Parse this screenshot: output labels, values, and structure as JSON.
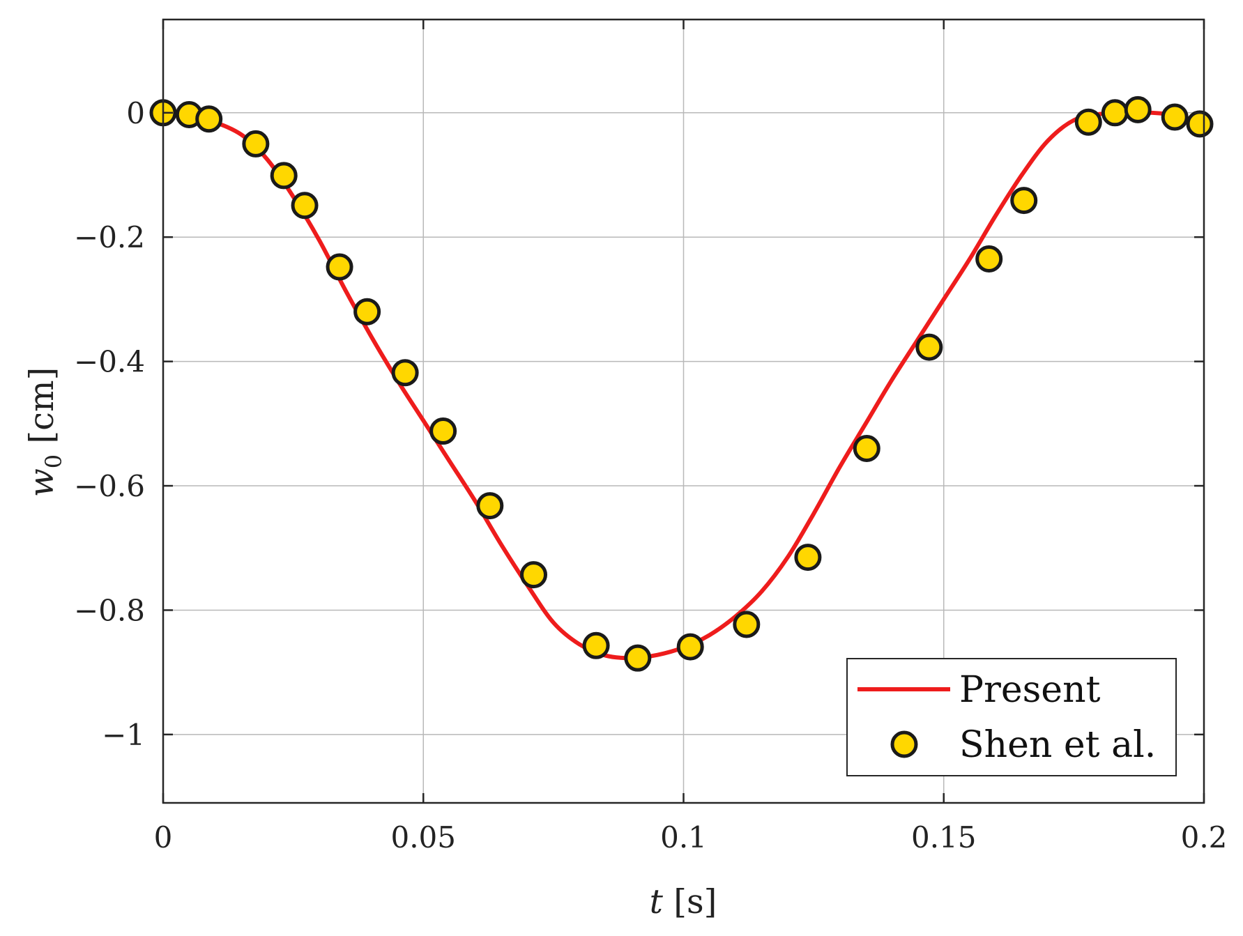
{
  "chart_data": {
    "type": "line",
    "xlabel": "t [s]",
    "ylabel": "w0 [cm]",
    "xlim": [
      0,
      0.2
    ],
    "ylim": [
      -1.11,
      0.15
    ],
    "xticks": [
      0,
      0.05,
      0.1,
      0.15,
      0.2
    ],
    "xtick_labels": [
      "0",
      "0.05",
      "0.1",
      "0.15",
      "0.2"
    ],
    "yticks": [
      0,
      -0.2,
      -0.4,
      -0.6,
      -0.8,
      -1
    ],
    "ytick_labels": [
      "0",
      "−0.2",
      "−0.4",
      "−0.6",
      "−0.8",
      "−1"
    ],
    "grid": true,
    "legend_position": "bottom-right",
    "series": [
      {
        "name": "Present",
        "kind": "line",
        "color": "#ee1c1c",
        "x": [
          0,
          0.005,
          0.009,
          0.015,
          0.02,
          0.025,
          0.03,
          0.035,
          0.04,
          0.045,
          0.05,
          0.055,
          0.06,
          0.065,
          0.07,
          0.075,
          0.08,
          0.085,
          0.09,
          0.095,
          0.1,
          0.105,
          0.11,
          0.115,
          0.12,
          0.125,
          0.13,
          0.135,
          0.14,
          0.145,
          0.15,
          0.155,
          0.16,
          0.165,
          0.17,
          0.175,
          0.18,
          0.185,
          0.19,
          0.195,
          0.2
        ],
        "y": [
          0,
          -0.003,
          -0.012,
          -0.035,
          -0.075,
          -0.135,
          -0.205,
          -0.285,
          -0.36,
          -0.43,
          -0.495,
          -0.56,
          -0.625,
          -0.695,
          -0.76,
          -0.82,
          -0.855,
          -0.873,
          -0.877,
          -0.872,
          -0.86,
          -0.84,
          -0.81,
          -0.77,
          -0.715,
          -0.645,
          -0.57,
          -0.5,
          -0.43,
          -0.365,
          -0.3,
          -0.235,
          -0.165,
          -0.1,
          -0.045,
          -0.012,
          -0.002,
          0,
          0,
          -0.005,
          -0.018
        ]
      },
      {
        "name": "Shen et al.",
        "kind": "scatter",
        "color": "#ffd700",
        "edge_color": "#1a1a1a",
        "x": [
          0,
          0.005,
          0.0088,
          0.0178,
          0.0232,
          0.0272,
          0.0339,
          0.0392,
          0.0465,
          0.0538,
          0.0628,
          0.0712,
          0.0832,
          0.0912,
          0.1013,
          0.1121,
          0.1239,
          0.1352,
          0.1472,
          0.1587,
          0.1654,
          0.1778,
          0.1829,
          0.1873,
          0.1944,
          0.1992
        ],
        "y": [
          0,
          -0.003,
          -0.01,
          -0.05,
          -0.101,
          -0.149,
          -0.248,
          -0.32,
          -0.418,
          -0.512,
          -0.632,
          -0.743,
          -0.857,
          -0.877,
          -0.859,
          -0.823,
          -0.715,
          -0.54,
          -0.377,
          -0.235,
          -0.141,
          -0.015,
          0,
          0.005,
          -0.007,
          -0.018
        ]
      }
    ]
  }
}
